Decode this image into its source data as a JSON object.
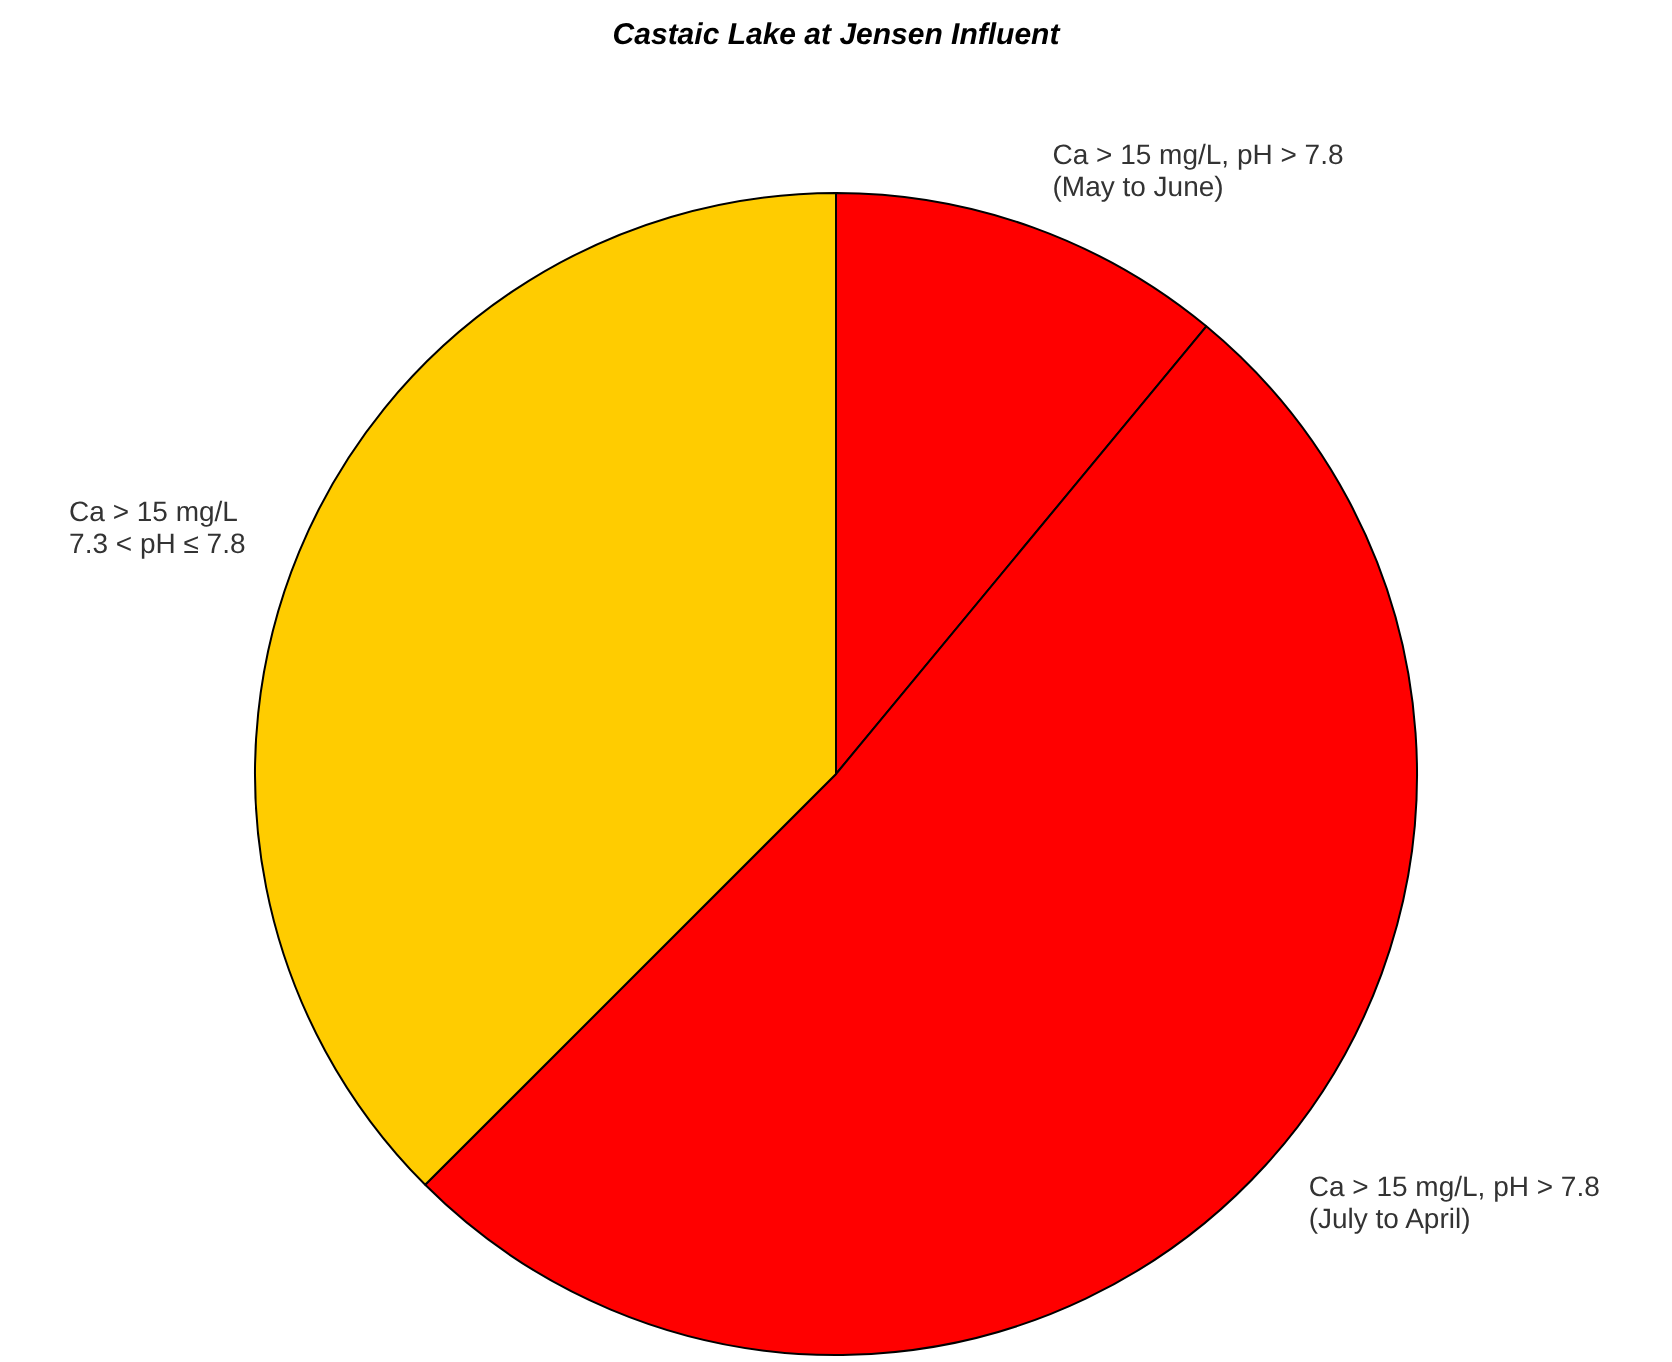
{
  "chart_data": {
    "type": "pie",
    "title": "Castaic Lake at Jensen Influent",
    "categories": [
      "Ca > 15 mg/L, pH > 7.8\n(May to June)",
      "Ca > 15 mg/L, pH > 7.8\n(July to April)",
      "Ca > 15 mg/L\n7.3 < pH ≤ 7.8"
    ],
    "values": [
      11,
      51.5,
      37.5
    ],
    "colors": [
      "#ff0000",
      "#ff0000",
      "#ffcc00"
    ],
    "legend": false
  }
}
